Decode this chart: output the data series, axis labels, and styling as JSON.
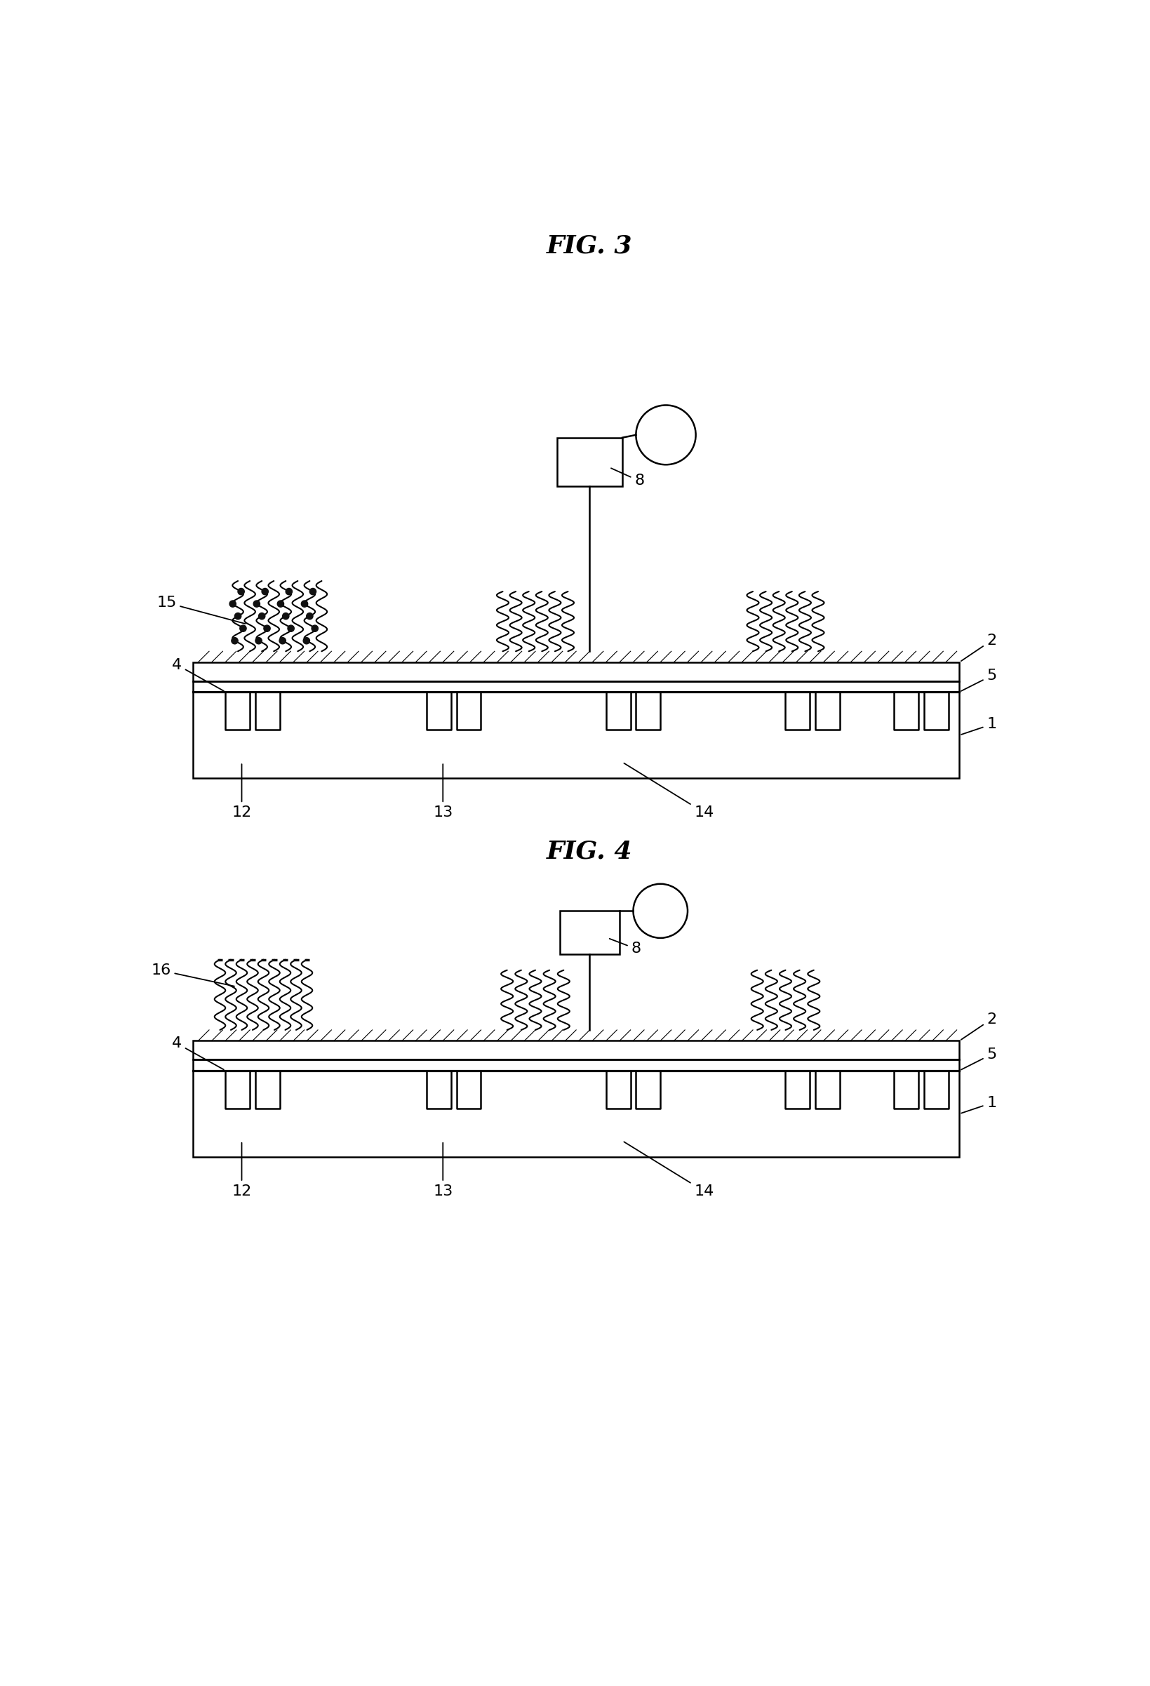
{
  "fig3_title": "FIG. 3",
  "fig4_title": "FIG. 4",
  "bg_color": "#ffffff",
  "line_color": "#000000",
  "label_fontsize": 16,
  "title_fontsize": 26
}
